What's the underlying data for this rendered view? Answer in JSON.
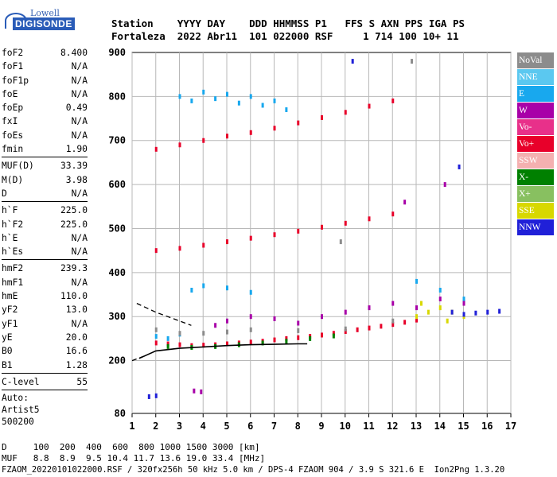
{
  "logo": {
    "brand_top": "Lowell",
    "brand_main": "DIGISONDE"
  },
  "header": {
    "line1": "Station    YYYY DAY    DDD HHMMSS P1   FFS S AXN PPS IGA PS",
    "line2": "Fortaleza  2022 Abr11  101 022000 RSF     1 714 100 10+ 11"
  },
  "params": [
    {
      "name": "foF2",
      "value": "8.400"
    },
    {
      "name": "foF1",
      "value": "N/A"
    },
    {
      "name": "foF1p",
      "value": "N/A"
    },
    {
      "name": "foE",
      "value": "N/A"
    },
    {
      "name": "foEp",
      "value": "0.49"
    },
    {
      "name": "fxI",
      "value": "N/A"
    },
    {
      "name": "foEs",
      "value": "N/A"
    },
    {
      "name": "fmin",
      "value": "1.90"
    },
    {
      "name": "MUF(D)",
      "value": "33.39"
    },
    {
      "name": "M(D)",
      "value": "3.98"
    },
    {
      "name": "D",
      "value": "N/A"
    },
    {
      "name": "h`F",
      "value": "225.0"
    },
    {
      "name": "h`F2",
      "value": "225.0"
    },
    {
      "name": "h`E",
      "value": "N/A"
    },
    {
      "name": "h`Es",
      "value": "N/A"
    },
    {
      "name": "hmF2",
      "value": "239.3"
    },
    {
      "name": "hmF1",
      "value": "N/A"
    },
    {
      "name": "hmE",
      "value": "110.0"
    },
    {
      "name": "yF2",
      "value": "13.0"
    },
    {
      "name": "yF1",
      "value": "N/A"
    },
    {
      "name": "yE",
      "value": "20.0"
    },
    {
      "name": "B0",
      "value": "16.6"
    },
    {
      "name": "B1",
      "value": "1.28"
    },
    {
      "name": "C-level",
      "value": "55"
    }
  ],
  "auto": {
    "line1": "Auto:",
    "line2": "Artist5",
    "line3": "500200"
  },
  "legend": [
    {
      "label": "NoVal",
      "color": "#8c8c8c"
    },
    {
      "label": "NNE",
      "color": "#5bc8f0"
    },
    {
      "label": "E",
      "color": "#18a8ee"
    },
    {
      "label": "W",
      "color": "#a800a8"
    },
    {
      "label": "Vo-",
      "color": "#e8308a"
    },
    {
      "label": "Vo+",
      "color": "#e8002a"
    },
    {
      "label": "SSW",
      "color": "#f4b0b0"
    },
    {
      "label": "X-",
      "color": "#008000"
    },
    {
      "label": "X+",
      "color": "#88c060"
    },
    {
      "label": "SSE",
      "color": "#d8d800"
    },
    {
      "label": "NNW",
      "color": "#2020d8"
    }
  ],
  "footer": {
    "line1": "D     100  200  400  600  800 1000 1500 3000 [km]",
    "line2": "MUF   8.8  8.9  9.5 10.4 11.7 13.6 19.0 33.4 [MHz]",
    "line3": "FZAOM_20220101022000.RSF / 320fx256h 50 kHz 5.0 km / DPS-4 FZAOM 904 / 3.9 S 321.6 E  Ion2Png 1.3.20"
  },
  "chart_data": {
    "type": "scatter",
    "xlim": [
      1,
      17
    ],
    "ylim": [
      80,
      900
    ],
    "x_ticks": [
      1,
      2,
      3,
      4,
      5,
      6,
      7,
      8,
      9,
      10,
      11,
      12,
      13,
      14,
      15,
      16,
      17
    ],
    "y_ticks": [
      80,
      200,
      300,
      400,
      500,
      600,
      700,
      800,
      900
    ],
    "grid": true,
    "legend_position": "right",
    "series": [
      {
        "name": "Vo+",
        "color": "#e8002a",
        "points": [
          [
            2.0,
            240
          ],
          [
            2.5,
            238
          ],
          [
            3.0,
            236
          ],
          [
            3.5,
            234
          ],
          [
            4.0,
            235
          ],
          [
            4.5,
            236
          ],
          [
            5.0,
            238
          ],
          [
            5.5,
            240
          ],
          [
            6.0,
            242
          ],
          [
            6.5,
            244
          ],
          [
            7.0,
            247
          ],
          [
            7.5,
            250
          ],
          [
            8.0,
            252
          ],
          [
            8.5,
            255
          ],
          [
            9.0,
            258
          ],
          [
            9.5,
            262
          ],
          [
            10.0,
            266
          ],
          [
            10.5,
            270
          ],
          [
            11.0,
            274
          ],
          [
            11.5,
            278
          ],
          [
            12.0,
            282
          ],
          [
            12.5,
            287
          ],
          [
            13.0,
            292
          ],
          [
            2.0,
            450
          ],
          [
            3.0,
            455
          ],
          [
            4.0,
            462
          ],
          [
            5.0,
            470
          ],
          [
            6.0,
            478
          ],
          [
            7.0,
            486
          ],
          [
            8.0,
            494
          ],
          [
            9.0,
            503
          ],
          [
            10.0,
            512
          ],
          [
            11.0,
            522
          ],
          [
            12.0,
            533
          ],
          [
            2.0,
            680
          ],
          [
            3.0,
            690
          ],
          [
            4.0,
            700
          ],
          [
            5.0,
            710
          ],
          [
            6.0,
            718
          ],
          [
            7.0,
            728
          ],
          [
            8.0,
            740
          ],
          [
            9.0,
            752
          ],
          [
            10.0,
            764
          ],
          [
            11.0,
            778
          ],
          [
            12.0,
            790
          ]
        ]
      },
      {
        "name": "E",
        "color": "#18a8ee",
        "points": [
          [
            3.0,
            800
          ],
          [
            3.5,
            790
          ],
          [
            4.0,
            810
          ],
          [
            4.5,
            795
          ],
          [
            5.0,
            805
          ],
          [
            5.5,
            785
          ],
          [
            6.0,
            800
          ],
          [
            6.5,
            780
          ],
          [
            7.0,
            790
          ],
          [
            7.5,
            770
          ],
          [
            3.5,
            360
          ],
          [
            4.0,
            370
          ],
          [
            5.0,
            365
          ],
          [
            6.0,
            355
          ],
          [
            2.0,
            255
          ],
          [
            2.5,
            250
          ],
          [
            3.0,
            260
          ],
          [
            13.0,
            380
          ],
          [
            14.0,
            360
          ],
          [
            15.0,
            340
          ]
        ]
      },
      {
        "name": "W",
        "color": "#a800a8",
        "points": [
          [
            4.5,
            280
          ],
          [
            5.0,
            290
          ],
          [
            6.0,
            300
          ],
          [
            7.0,
            295
          ],
          [
            8.0,
            285
          ],
          [
            9.0,
            300
          ],
          [
            10.0,
            310
          ],
          [
            11.0,
            320
          ],
          [
            12.0,
            330
          ],
          [
            13.0,
            320
          ],
          [
            14.0,
            340
          ],
          [
            15.0,
            330
          ],
          [
            3.6,
            131
          ],
          [
            3.9,
            129
          ],
          [
            12.5,
            560
          ],
          [
            14.2,
            600
          ]
        ]
      },
      {
        "name": "X-",
        "color": "#008000",
        "points": [
          [
            2.5,
            232
          ],
          [
            3.5,
            230
          ],
          [
            4.5,
            232
          ],
          [
            5.5,
            236
          ],
          [
            6.5,
            240
          ],
          [
            7.5,
            244
          ],
          [
            8.5,
            250
          ],
          [
            9.5,
            256
          ]
        ]
      },
      {
        "name": "SSE",
        "color": "#d8d800",
        "points": [
          [
            13.0,
            300
          ],
          [
            13.5,
            310
          ],
          [
            14.0,
            320
          ],
          [
            14.5,
            310
          ],
          [
            15.0,
            300
          ],
          [
            13.2,
            330
          ],
          [
            14.3,
            290
          ]
        ]
      },
      {
        "name": "NNW",
        "color": "#2020d8",
        "points": [
          [
            14.5,
            310
          ],
          [
            15.0,
            305
          ],
          [
            15.5,
            308
          ],
          [
            16.0,
            310
          ],
          [
            16.5,
            312
          ],
          [
            10.3,
            880
          ],
          [
            14.8,
            640
          ],
          [
            1.7,
            118
          ],
          [
            2.0,
            120
          ]
        ]
      },
      {
        "name": "NoVal",
        "color": "#8c8c8c",
        "points": [
          [
            2.0,
            270
          ],
          [
            3.0,
            262
          ],
          [
            4.0,
            262
          ],
          [
            5.0,
            265
          ],
          [
            6.0,
            270
          ],
          [
            8.0,
            268
          ],
          [
            10.0,
            272
          ],
          [
            12.0,
            290
          ],
          [
            12.8,
            880
          ],
          [
            9.8,
            470
          ]
        ]
      }
    ],
    "virtual_height_curve": [
      [
        1.3,
        205
      ],
      [
        2.0,
        222
      ],
      [
        3.0,
        228
      ],
      [
        4.0,
        231
      ],
      [
        5.0,
        234
      ],
      [
        6.0,
        236
      ],
      [
        7.0,
        237
      ],
      [
        8.0,
        238
      ],
      [
        8.4,
        238
      ]
    ],
    "dashed_line": [
      [
        1.2,
        330
      ],
      [
        2.0,
        310
      ],
      [
        3.0,
        290
      ],
      [
        3.5,
        280
      ]
    ],
    "dashed_line_low": [
      [
        1.0,
        200
      ],
      [
        1.6,
        212
      ]
    ]
  }
}
